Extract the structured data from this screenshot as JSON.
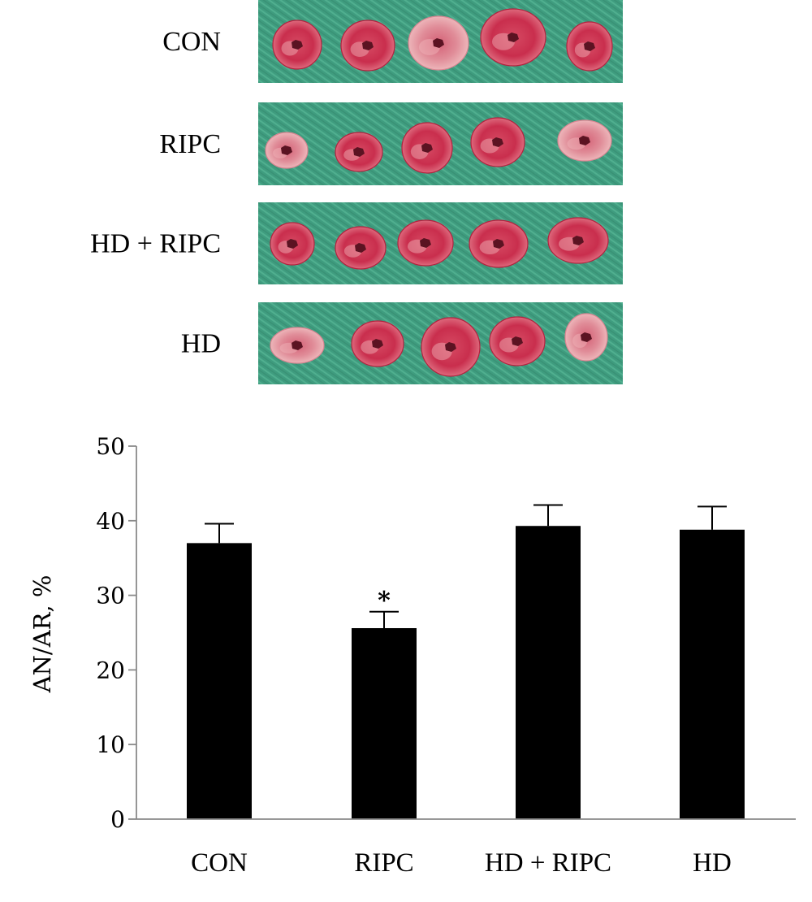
{
  "photo_panel": {
    "rows": [
      {
        "label": "CON",
        "slices": 5
      },
      {
        "label": "RIPC",
        "slices": 5
      },
      {
        "label": "HD + RIPC",
        "slices": 5
      },
      {
        "label": "HD",
        "slices": 5
      }
    ],
    "colors": {
      "board": "#3f9c7f",
      "board_stripe": "#58b896",
      "tissue_red": "#c62a4a",
      "tissue_pale": "#e8a3aa",
      "tissue_core": "#5b1322"
    }
  },
  "chart_data": {
    "type": "bar",
    "categories": [
      "CON",
      "RIPC",
      "HD + RIPC",
      "HD"
    ],
    "values": [
      37.0,
      25.6,
      39.3,
      38.8
    ],
    "errors": [
      2.6,
      2.2,
      2.8,
      3.1
    ],
    "annotations": [
      "",
      "*",
      "",
      ""
    ],
    "ylabel": "AN/AR, %",
    "xlabel": "",
    "ylim": [
      0,
      50
    ],
    "yticks": [
      0,
      10,
      20,
      30,
      40,
      50
    ],
    "bar_color": "#000000",
    "grid": false
  }
}
